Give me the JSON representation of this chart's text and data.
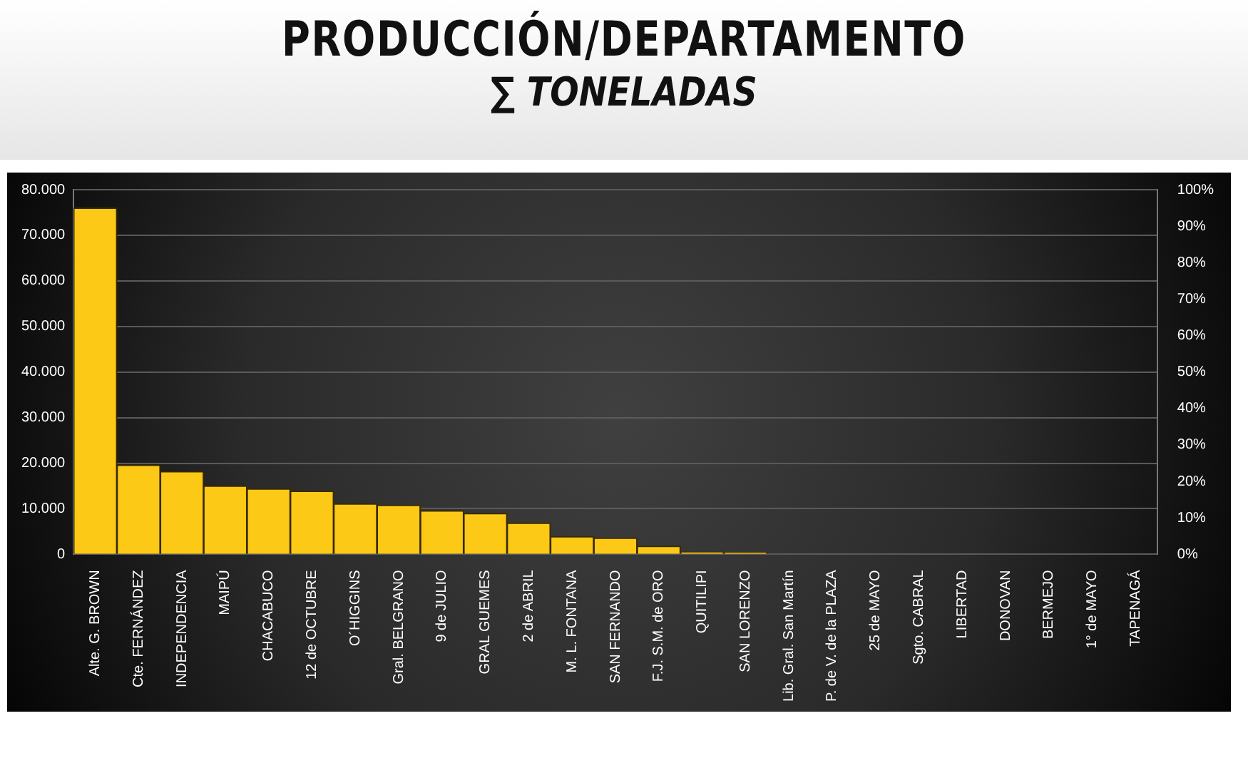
{
  "chart_data": {
    "type": "bar",
    "title": "PRODUCCIÓN/DEPARTAMENTO",
    "subtitle": "∑ TONELADAS",
    "categories": [
      "Alte. G. BROWN",
      "Cte. FERNÁNDEZ",
      "INDEPENDENCIA",
      "MAIPÚ",
      "CHACABUCO",
      "12 de OCTUBRE",
      "O´HIGGINS",
      "Gral. BELGRANO",
      "9 de JULIO",
      "GRAL GUEMES",
      "2 de ABRIL",
      "M. L. FONTANA",
      "SAN FERNANDO",
      "F.J. S.M. de ORO",
      "QUITILIPI",
      "SAN LORENZO",
      "Lib. Gral. San Martín",
      "P. de V. de la PLAZA",
      "25 de MAYO",
      "Sgto. CABRAL",
      "LIBERTAD",
      "DONOVAN",
      "BERMEJO",
      "1° de MAYO",
      "TAPENAGÁ"
    ],
    "values": [
      76000,
      19600,
      18200,
      15000,
      14400,
      13900,
      11100,
      10800,
      9600,
      9000,
      6900,
      3900,
      3600,
      1800,
      500,
      400,
      0,
      0,
      0,
      0,
      0,
      0,
      0,
      0,
      0
    ],
    "color": "#fcc917",
    "ylim": [
      0,
      80000
    ],
    "yticks": [
      {
        "value": 0,
        "label": "0"
      },
      {
        "value": 10000,
        "label": "10.000"
      },
      {
        "value": 20000,
        "label": "20.000"
      },
      {
        "value": 30000,
        "label": "30.000"
      },
      {
        "value": 40000,
        "label": "40.000"
      },
      {
        "value": 50000,
        "label": "50.000"
      },
      {
        "value": 60000,
        "label": "60.000"
      },
      {
        "value": 70000,
        "label": "70.000"
      },
      {
        "value": 80000,
        "label": "80.000"
      }
    ],
    "y2lim": [
      0,
      100
    ],
    "y2ticks": [
      {
        "value": 0,
        "label": "0%"
      },
      {
        "value": 10,
        "label": "10%"
      },
      {
        "value": 20,
        "label": "20%"
      },
      {
        "value": 30,
        "label": "30%"
      },
      {
        "value": 40,
        "label": "40%"
      },
      {
        "value": 50,
        "label": "50%"
      },
      {
        "value": 60,
        "label": "60%"
      },
      {
        "value": 70,
        "label": "70%"
      },
      {
        "value": 80,
        "label": "80%"
      },
      {
        "value": 90,
        "label": "90%"
      },
      {
        "value": 100,
        "label": "100%"
      }
    ],
    "grid": "y",
    "legend": false
  }
}
